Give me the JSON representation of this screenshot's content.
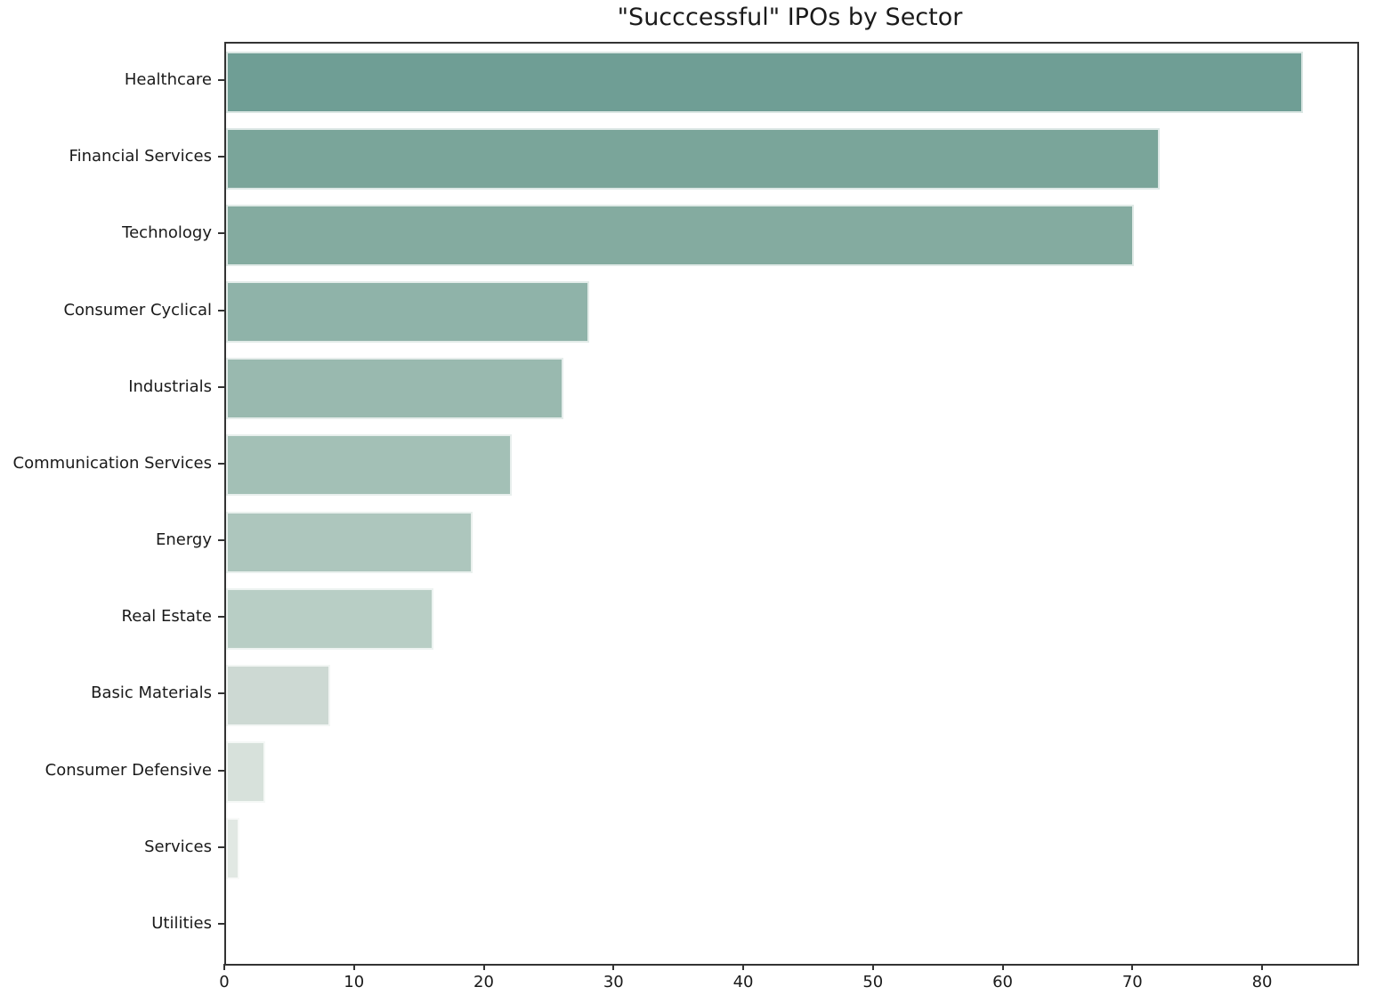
{
  "chart_data": {
    "type": "bar",
    "orientation": "horizontal",
    "title": "\"Succcessful\" IPOs by Sector",
    "xlabel": "",
    "ylabel": "",
    "categories": [
      "Healthcare",
      "Financial Services",
      "Technology",
      "Consumer Cyclical",
      "Industrials",
      "Communication Services",
      "Energy",
      "Real Estate",
      "Basic Materials",
      "Consumer Defensive",
      "Services",
      "Utilities"
    ],
    "values": [
      83,
      72,
      70,
      28,
      26,
      22,
      19,
      16,
      8,
      3,
      1,
      0
    ],
    "bar_colors": [
      "#6f9e95",
      "#7aa59a",
      "#84aba0",
      "#8fb3a9",
      "#99b9af",
      "#a3c0b6",
      "#adc6bd",
      "#b8cec5",
      "#cdd9d3",
      "#d7e1db",
      "#e1e8e3",
      "#ebefec"
    ],
    "xticks": [
      0,
      10,
      20,
      30,
      40,
      50,
      60,
      70,
      80
    ],
    "xlim": [
      0,
      87.2
    ],
    "grid": false,
    "legend": null,
    "spine_color": "#333333",
    "text_color": "#1a1a1a"
  }
}
